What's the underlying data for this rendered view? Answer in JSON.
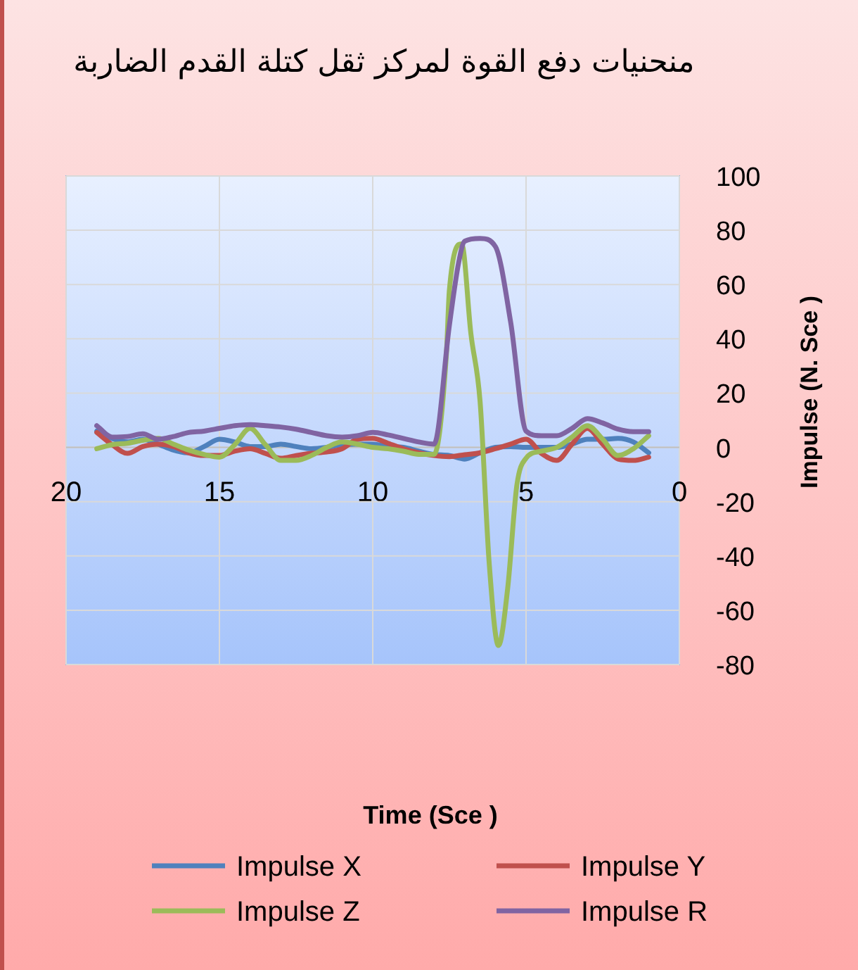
{
  "chart_data": {
    "type": "line",
    "title": "منحنيات دفع القوة لمركز ثقل كتلة القدم الضاربة",
    "xlabel": "Time (Sce )",
    "ylabel": "Impulse  (N. Sce )",
    "xlim": [
      20,
      0
    ],
    "xticks": [
      20,
      15,
      10,
      5,
      0
    ],
    "ylim": [
      -80,
      100
    ],
    "yticks": [
      -80,
      -60,
      -40,
      -20,
      0,
      20,
      40,
      60,
      80,
      100
    ],
    "grid": true,
    "legend": "bottom",
    "series": [
      {
        "name": "Impulse X",
        "color": "#4f81bd",
        "x": [
          19,
          18.5,
          18,
          17.5,
          17,
          16.5,
          16,
          15.5,
          15,
          14.5,
          14,
          13.5,
          13,
          12.5,
          12,
          11.5,
          11,
          10.5,
          10,
          9.5,
          9,
          8.5,
          8,
          7.5,
          7,
          6.5,
          6,
          5.5,
          5,
          4.5,
          4,
          3.5,
          3,
          2.5,
          2,
          1.5,
          1
        ],
        "values": [
          6,
          3.3,
          2,
          3,
          1.2,
          -1,
          -2,
          0.3,
          3,
          2,
          0.3,
          0.3,
          1.2,
          0.3,
          -0.5,
          0,
          1,
          1.2,
          1.2,
          0.3,
          0,
          -1.4,
          -2.6,
          -3,
          -4.3,
          -2,
          0,
          0.3,
          0,
          0,
          0,
          1.2,
          3,
          3,
          3.3,
          2,
          -2
        ]
      },
      {
        "name": "Impulse Y",
        "color": "#c0504d",
        "x": [
          19,
          18.5,
          18,
          17.5,
          17,
          16.5,
          16,
          15.5,
          15,
          14.5,
          14,
          13.5,
          13,
          12.5,
          12,
          11.5,
          11,
          10.5,
          10,
          9.5,
          9,
          8.5,
          8,
          7.5,
          7,
          6.5,
          6,
          5.5,
          5,
          4.5,
          4,
          3.5,
          3,
          2.5,
          2,
          1.5,
          1
        ],
        "values": [
          5.5,
          1,
          -2.2,
          0.3,
          1.2,
          0.3,
          -2,
          -3,
          -3,
          -1.4,
          -0.5,
          -2.2,
          -4,
          -3,
          -2.2,
          -1.7,
          -0.5,
          3,
          3.3,
          1.5,
          -0.5,
          -2,
          -3,
          -3.4,
          -2.7,
          -2,
          -0.5,
          1.2,
          3,
          -2.2,
          -4.8,
          1.2,
          7,
          1.2,
          -4.3,
          -4.8,
          -3.6
        ]
      },
      {
        "name": "Impulse Z",
        "color": "#9bbb59",
        "x": [
          19,
          18.5,
          18,
          17.5,
          17,
          16.5,
          16,
          15.5,
          15,
          14.5,
          14,
          13.5,
          13,
          12.5,
          12,
          11.5,
          11,
          10.5,
          10,
          9.5,
          9,
          8.5,
          8,
          7.6,
          7.5,
          7.1,
          6.8,
          6.5,
          6.2,
          5.9,
          5.6,
          5.3,
          5,
          4.5,
          4,
          3.5,
          3,
          2.5,
          2,
          1.5,
          1
        ],
        "values": [
          -0.5,
          1,
          1.5,
          2.6,
          3.3,
          1.2,
          -1,
          -2.6,
          -3.6,
          1,
          7,
          1,
          -4.8,
          -4.8,
          -3,
          0,
          2,
          1.2,
          0,
          -0.5,
          -1.4,
          -2.6,
          -2.6,
          34,
          58,
          75,
          42,
          17,
          -43,
          -73,
          -52,
          -14,
          -4,
          -1.4,
          0,
          3.8,
          8,
          3,
          -3,
          -0.5,
          4.3
        ]
      },
      {
        "name": "Impulse R",
        "color": "#8064a2",
        "x": [
          19,
          18.5,
          18,
          17.5,
          17,
          16.5,
          16,
          15.5,
          15,
          14.5,
          14,
          13.5,
          13,
          12.5,
          12,
          11.5,
          11,
          10.5,
          10,
          9.5,
          9,
          8.5,
          8,
          7.5,
          7.2,
          7,
          6.5,
          6,
          5.5,
          5,
          4.5,
          4,
          3.5,
          3,
          2.5,
          2,
          1.5,
          1
        ],
        "values": [
          8,
          3.8,
          4,
          5,
          3,
          4,
          5.5,
          6,
          7,
          8,
          8.4,
          8,
          7.5,
          6.7,
          5.5,
          4.3,
          3.8,
          4.3,
          5.5,
          4.6,
          3.3,
          2,
          1.2,
          45,
          68,
          76,
          77,
          74,
          46,
          6,
          4.3,
          4.3,
          7,
          10.6,
          9,
          6.7,
          5.8,
          5.8
        ]
      }
    ]
  }
}
